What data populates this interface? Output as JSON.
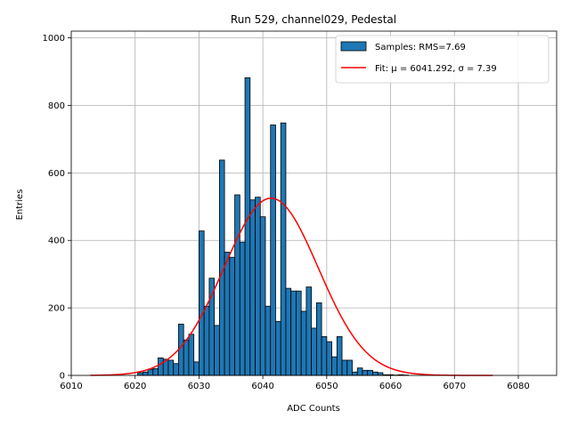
{
  "chart_data": {
    "type": "bar",
    "title": "Run 529, channel029, Pedestal",
    "xlabel": "ADC Counts",
    "ylabel": "Entries",
    "xlim": [
      6010,
      6086
    ],
    "ylim": [
      0,
      1020
    ],
    "xticks": [
      6010,
      6020,
      6030,
      6040,
      6050,
      6060,
      6070,
      6080
    ],
    "yticks": [
      0,
      200,
      400,
      600,
      800,
      1000
    ],
    "grid": true,
    "legend_position": "top-right",
    "bin_width": 0.8,
    "bar_color": "#1f77b4",
    "bar_edge_color": "#000000",
    "fit_color": "#ff0000",
    "series": [
      {
        "name": "Samples: RMS=7.69",
        "x": [
          6020.4,
          6021.2,
          6022.0,
          6022.8,
          6023.6,
          6024.4,
          6025.2,
          6026.0,
          6026.8,
          6027.6,
          6028.4,
          6029.2,
          6030.0,
          6030.8,
          6031.6,
          6032.4,
          6033.2,
          6034.0,
          6034.8,
          6035.6,
          6036.4,
          6037.2,
          6038.0,
          6038.8,
          6039.6,
          6040.4,
          6041.2,
          6042.0,
          6042.8,
          6043.6,
          6044.4,
          6045.2,
          6046.0,
          6046.8,
          6047.6,
          6048.4,
          6049.2,
          6050.0,
          6050.8,
          6051.6,
          6052.4,
          6053.2,
          6054.0,
          6054.8,
          6055.6,
          6056.4,
          6057.2,
          6058.0,
          6058.8,
          6059.6,
          6060.4,
          6061.2,
          6062.0,
          6062.8,
          6063.6,
          6064.4,
          6065.2
        ],
        "values": [
          8,
          10,
          18,
          20,
          52,
          48,
          45,
          35,
          152,
          105,
          122,
          40,
          428,
          205,
          288,
          148,
          638,
          365,
          350,
          535,
          395,
          882,
          520,
          528,
          470,
          205,
          742,
          160,
          748,
          258,
          250,
          250,
          190,
          262,
          140,
          215,
          115,
          100,
          55,
          115,
          45,
          45,
          10,
          22,
          15,
          15,
          10,
          8,
          2,
          2,
          1,
          2,
          1,
          0,
          0,
          0,
          0
        ]
      },
      {
        "name": "Fit: μ = 6041.292, σ = 7.39",
        "mu": 6041.292,
        "sigma": 7.39,
        "peak": 525,
        "x_range": [
          6013,
          6076
        ]
      }
    ]
  }
}
